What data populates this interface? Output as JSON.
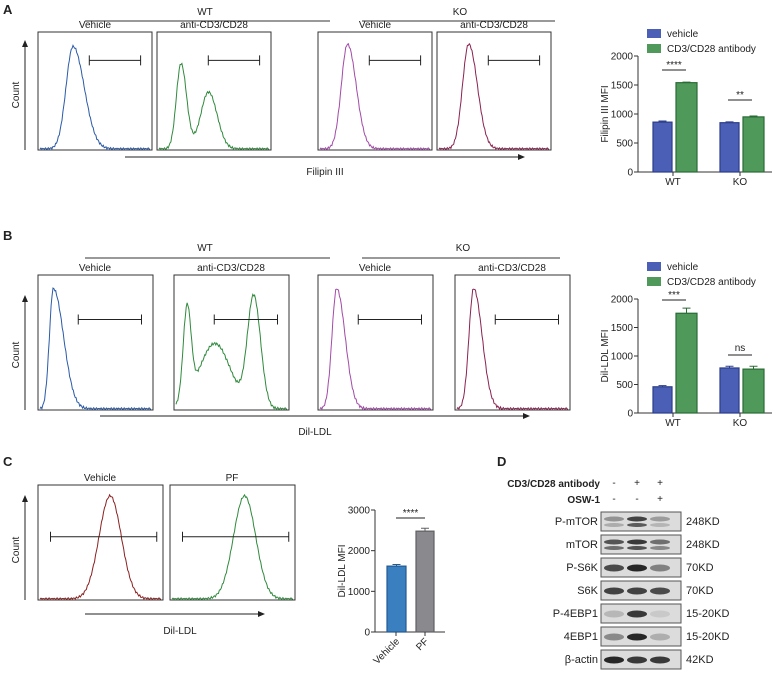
{
  "panels": {
    "A": {
      "letter": "A",
      "groups": [
        "WT",
        "KO"
      ],
      "conditions": [
        "Vehicle",
        "anti-CD3/CD28",
        "Vehicle",
        "anti-CD3/CD28"
      ],
      "y_axis": "Count",
      "x_axis": "Filipin III",
      "histogram_colors": [
        "#2a5aa8",
        "#2f8a3c",
        "#a24aa8",
        "#8a2250"
      ]
    },
    "B": {
      "letter": "B",
      "groups": [
        "WT",
        "KO"
      ],
      "conditions": [
        "Vehicle",
        "anti-CD3/CD28",
        "Vehicle",
        "anti-CD3/CD28"
      ],
      "y_axis": "Count",
      "x_axis": "Dil-LDL",
      "histogram_colors": [
        "#2a5aa8",
        "#2f8a3c",
        "#a24aa8",
        "#8a2250"
      ]
    },
    "C": {
      "letter": "C",
      "conditions": [
        "Vehicle",
        "PF"
      ],
      "y_axis": "Count",
      "x_axis": "Dil-LDL",
      "histogram_colors": [
        "#8a2020",
        "#2f8a3c"
      ]
    },
    "D": {
      "letter": "D",
      "treatments": [
        {
          "label": "CD3/CD28 antibody",
          "signs": [
            "-",
            "+",
            "+"
          ]
        },
        {
          "label": "OSW-1",
          "signs": [
            "-",
            "-",
            "+"
          ]
        }
      ],
      "blots": [
        {
          "label": "P-mTOR",
          "size": "248KD"
        },
        {
          "label": "mTOR",
          "size": "248KD"
        },
        {
          "label": "P-S6K",
          "size": "70KD"
        },
        {
          "label": "S6K",
          "size": "70KD"
        },
        {
          "label": "P-4EBP1",
          "size": "15-20KD"
        },
        {
          "label": "4EBP1",
          "size": "15-20KD"
        },
        {
          "label": "β-actin",
          "size": "42KD"
        }
      ]
    }
  },
  "chart_data": [
    {
      "type": "bar",
      "panel": "A",
      "categories": [
        "WT",
        "KO"
      ],
      "ylabel": "Filipin III MFI",
      "ylim": [
        0,
        2000
      ],
      "yticks": [
        "0",
        "500",
        "1000",
        "1500",
        "2000"
      ],
      "legend": "top",
      "series": [
        {
          "name": "vehicle",
          "color": "#4a5fb5",
          "values": [
            860,
            850
          ],
          "errors": [
            20,
            15
          ]
        },
        {
          "name": "CD3/CD28 antibody",
          "color": "#4f9a5a",
          "values": [
            1540,
            950
          ],
          "errors": [
            10,
            15
          ]
        }
      ],
      "significance": [
        "****",
        "**"
      ]
    },
    {
      "type": "bar",
      "panel": "B",
      "categories": [
        "WT",
        "KO"
      ],
      "ylabel": "Dil-LDL MFI",
      "ylim": [
        0,
        2000
      ],
      "yticks": [
        "0",
        "500",
        "1000",
        "1500",
        "2000"
      ],
      "legend": "top",
      "series": [
        {
          "name": "vehicle",
          "color": "#4a5fb5",
          "values": [
            460,
            790
          ],
          "errors": [
            20,
            30
          ]
        },
        {
          "name": "CD3/CD28 antibody",
          "color": "#4f9a5a",
          "values": [
            1750,
            770
          ],
          "errors": [
            90,
            50
          ]
        }
      ],
      "significance": [
        "***",
        "ns"
      ]
    },
    {
      "type": "bar",
      "panel": "C",
      "categories": [
        "Vehicle",
        "PF"
      ],
      "ylabel": "Dil-LDL MFI",
      "ylim": [
        0,
        3000
      ],
      "yticks": [
        "0",
        "1000",
        "2000",
        "3000"
      ],
      "colors": [
        "#3a7fc0",
        "#8a8a8e"
      ],
      "values": [
        1620,
        2480
      ],
      "errors": [
        40,
        70
      ],
      "significance": [
        "****"
      ]
    }
  ]
}
